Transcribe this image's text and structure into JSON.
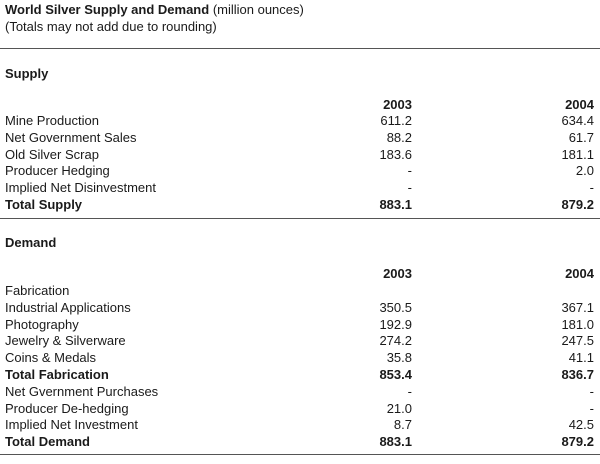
{
  "header": {
    "title": "World Silver Supply and Demand",
    "title_suffix": "(million ounces)",
    "note": "(Totals may not add due to rounding)"
  },
  "supply": {
    "heading": "Supply",
    "years": [
      "2003",
      "2004"
    ],
    "rows": [
      {
        "label": "Mine Production",
        "v2003": "611.2",
        "v2004": "634.4",
        "bold": false
      },
      {
        "label": "Net Government Sales",
        "v2003": "88.2",
        "v2004": "61.7",
        "bold": false
      },
      {
        "label": "Old Silver Scrap",
        "v2003": "183.6",
        "v2004": "181.1",
        "bold": false
      },
      {
        "label": "Producer Hedging",
        "v2003": "-",
        "v2004": "2.0",
        "bold": false
      },
      {
        "label": "Implied Net Disinvestment",
        "v2003": "-",
        "v2004": "-",
        "bold": false
      },
      {
        "label": "Total Supply",
        "v2003": "883.1",
        "v2004": "879.2",
        "bold": true
      }
    ]
  },
  "demand": {
    "heading": "Demand",
    "years": [
      "2003",
      "2004"
    ],
    "rows": [
      {
        "label": "Fabrication",
        "v2003": "",
        "v2004": "",
        "bold": false
      },
      {
        "label": "Industrial Applications",
        "v2003": "350.5",
        "v2004": "367.1",
        "bold": false
      },
      {
        "label": "Photography",
        "v2003": "192.9",
        "v2004": "181.0",
        "bold": false
      },
      {
        "label": "Jewelry & Silverware",
        "v2003": "274.2",
        "v2004": "247.5",
        "bold": false
      },
      {
        "label": "Coins & Medals",
        "v2003": "35.8",
        "v2004": "41.1",
        "bold": false
      },
      {
        "label": "Total Fabrication",
        "v2003": "853.4",
        "v2004": "836.7",
        "bold": true
      },
      {
        "label": "Net Gvernment Purchases",
        "v2003": "-",
        "v2004": "-",
        "bold": false
      },
      {
        "label": "Producer De-hedging",
        "v2003": "21.0",
        "v2004": "-",
        "bold": false
      },
      {
        "label": "Implied Net Investment",
        "v2003": "8.7",
        "v2004": "42.5",
        "bold": false
      },
      {
        "label": "Total Demand",
        "v2003": "883.1",
        "v2004": "879.2",
        "bold": true
      }
    ]
  }
}
